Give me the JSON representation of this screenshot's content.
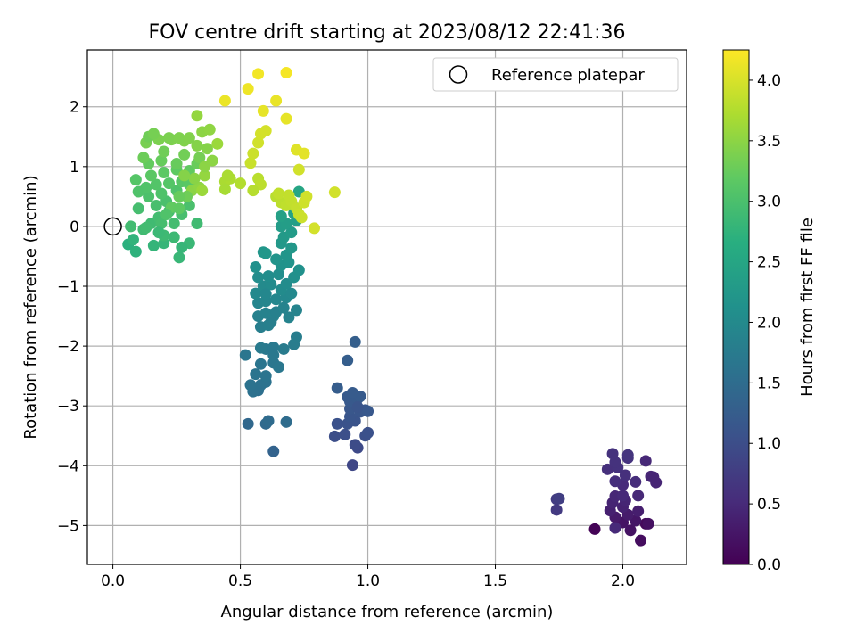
{
  "chart_data": {
    "type": "scatter",
    "title": "FOV centre drift starting at 2023/08/12 22:41:36",
    "xlabel": "Angular distance from reference (arcmin)",
    "ylabel": "Rotation from reference (arcmin)",
    "xlim": [
      -0.1,
      2.25
    ],
    "ylim": [
      -5.65,
      2.95
    ],
    "xticks": [
      0.0,
      0.5,
      1.0,
      1.5,
      2.0
    ],
    "xtick_labels": [
      "0.0",
      "0.5",
      "1.0",
      "1.5",
      "2.0"
    ],
    "yticks": [
      -5,
      -4,
      -3,
      -2,
      -1,
      0,
      1,
      2
    ],
    "ytick_labels": [
      "−5",
      "−4",
      "−3",
      "−2",
      "−1",
      "0",
      "1",
      "2"
    ],
    "grid": true,
    "legend": {
      "position": "top-right",
      "entries": [
        "Reference platepar"
      ]
    },
    "reference_point": {
      "x": 0.0,
      "y": 0.0
    },
    "colorbar": {
      "label": "Hours from first FF file",
      "colormap": "viridis",
      "range": [
        0.0,
        4.25
      ],
      "ticks": [
        0.0,
        0.5,
        1.0,
        1.5,
        2.0,
        2.5,
        3.0,
        3.5,
        4.0
      ],
      "tick_labels": [
        "0.0",
        "0.5",
        "1.0",
        "1.5",
        "2.0",
        "2.5",
        "3.0",
        "3.5",
        "4.0"
      ]
    },
    "points": [
      {
        "x": 1.89,
        "y": -5.06,
        "c": 0.03
      },
      {
        "x": 2.09,
        "y": -4.97,
        "c": 0.1
      },
      {
        "x": 2.07,
        "y": -5.25,
        "c": 0.15
      },
      {
        "x": 2.03,
        "y": -5.08,
        "c": 0.2
      },
      {
        "x": 2.0,
        "y": -4.95,
        "c": 0.22
      },
      {
        "x": 2.1,
        "y": -4.97,
        "c": 0.18
      },
      {
        "x": 2.05,
        "y": -4.92,
        "c": 0.25
      },
      {
        "x": 1.97,
        "y": -4.86,
        "c": 0.3
      },
      {
        "x": 2.02,
        "y": -4.82,
        "c": 0.32
      },
      {
        "x": 2.06,
        "y": -4.76,
        "c": 0.35
      },
      {
        "x": 1.95,
        "y": -4.75,
        "c": 0.38
      },
      {
        "x": 2.0,
        "y": -4.69,
        "c": 0.4
      },
      {
        "x": 1.96,
        "y": -4.62,
        "c": 0.42
      },
      {
        "x": 2.01,
        "y": -4.58,
        "c": 0.44
      },
      {
        "x": 1.97,
        "y": -4.51,
        "c": 0.46
      },
      {
        "x": 2.06,
        "y": -4.5,
        "c": 0.48
      },
      {
        "x": 2.0,
        "y": -4.5,
        "c": 0.5
      },
      {
        "x": 2.0,
        "y": -4.32,
        "c": 0.52
      },
      {
        "x": 2.05,
        "y": -4.27,
        "c": 0.54
      },
      {
        "x": 1.97,
        "y": -4.26,
        "c": 0.56
      },
      {
        "x": 2.01,
        "y": -4.16,
        "c": 0.57
      },
      {
        "x": 1.94,
        "y": -4.06,
        "c": 0.58
      },
      {
        "x": 1.98,
        "y": -4.03,
        "c": 0.6
      },
      {
        "x": 1.97,
        "y": -3.94,
        "c": 0.61
      },
      {
        "x": 2.02,
        "y": -3.87,
        "c": 0.62
      },
      {
        "x": 2.09,
        "y": -3.92,
        "c": 0.48
      },
      {
        "x": 2.11,
        "y": -4.18,
        "c": 0.46
      },
      {
        "x": 2.13,
        "y": -4.28,
        "c": 0.44
      },
      {
        "x": 1.96,
        "y": -3.8,
        "c": 0.6
      },
      {
        "x": 2.02,
        "y": -3.82,
        "c": 0.64
      },
      {
        "x": 1.97,
        "y": -5.04,
        "c": 0.5
      },
      {
        "x": 2.12,
        "y": -4.19,
        "c": 0.43
      },
      {
        "x": 1.74,
        "y": -4.56,
        "c": 0.75
      },
      {
        "x": 1.75,
        "y": -4.55,
        "c": 0.78
      },
      {
        "x": 1.74,
        "y": -4.74,
        "c": 0.72
      },
      {
        "x": 0.94,
        "y": -3.99,
        "c": 0.9
      },
      {
        "x": 0.96,
        "y": -3.7,
        "c": 0.95
      },
      {
        "x": 0.95,
        "y": -3.65,
        "c": 0.97
      },
      {
        "x": 0.87,
        "y": -3.51,
        "c": 1.0
      },
      {
        "x": 0.91,
        "y": -3.48,
        "c": 1.02
      },
      {
        "x": 0.99,
        "y": -3.5,
        "c": 1.04
      },
      {
        "x": 1.0,
        "y": -3.45,
        "c": 1.05
      },
      {
        "x": 0.88,
        "y": -3.3,
        "c": 1.06
      },
      {
        "x": 0.92,
        "y": -3.3,
        "c": 1.08
      },
      {
        "x": 0.95,
        "y": -3.25,
        "c": 1.1
      },
      {
        "x": 0.93,
        "y": -3.18,
        "c": 1.12
      },
      {
        "x": 0.97,
        "y": -3.1,
        "c": 1.13
      },
      {
        "x": 0.93,
        "y": -3.05,
        "c": 1.14
      },
      {
        "x": 0.99,
        "y": -3.07,
        "c": 1.15
      },
      {
        "x": 1.0,
        "y": -3.09,
        "c": 1.16
      },
      {
        "x": 0.93,
        "y": -2.93,
        "c": 1.18
      },
      {
        "x": 0.96,
        "y": -2.88,
        "c": 1.19
      },
      {
        "x": 0.92,
        "y": -2.85,
        "c": 1.2
      },
      {
        "x": 0.97,
        "y": -2.84,
        "c": 1.21
      },
      {
        "x": 0.94,
        "y": -2.78,
        "c": 1.22
      },
      {
        "x": 0.88,
        "y": -2.7,
        "c": 1.24
      },
      {
        "x": 0.92,
        "y": -2.24,
        "c": 1.26
      },
      {
        "x": 0.95,
        "y": -1.93,
        "c": 1.28
      },
      {
        "x": 0.96,
        "y": -3.02,
        "c": 1.11
      },
      {
        "x": 0.63,
        "y": -3.76,
        "c": 1.35
      },
      {
        "x": 0.53,
        "y": -3.3,
        "c": 1.42
      },
      {
        "x": 0.6,
        "y": -3.3,
        "c": 1.45
      },
      {
        "x": 0.61,
        "y": -3.25,
        "c": 1.48
      },
      {
        "x": 0.68,
        "y": -3.27,
        "c": 1.5
      },
      {
        "x": 0.57,
        "y": -2.74,
        "c": 1.55
      },
      {
        "x": 0.55,
        "y": -2.76,
        "c": 1.57
      },
      {
        "x": 0.58,
        "y": -2.65,
        "c": 1.58
      },
      {
        "x": 0.6,
        "y": -2.6,
        "c": 1.6
      },
      {
        "x": 0.54,
        "y": -2.65,
        "c": 1.6
      },
      {
        "x": 0.56,
        "y": -2.47,
        "c": 1.62
      },
      {
        "x": 0.6,
        "y": -2.5,
        "c": 1.63
      },
      {
        "x": 0.58,
        "y": -2.3,
        "c": 1.65
      },
      {
        "x": 0.52,
        "y": -2.15,
        "c": 1.66
      },
      {
        "x": 0.63,
        "y": -2.28,
        "c": 1.67
      },
      {
        "x": 0.65,
        "y": -2.35,
        "c": 1.68
      },
      {
        "x": 0.6,
        "y": -2.05,
        "c": 1.7
      },
      {
        "x": 0.63,
        "y": -2.02,
        "c": 1.72
      },
      {
        "x": 0.67,
        "y": -2.05,
        "c": 1.74
      },
      {
        "x": 0.58,
        "y": -2.03,
        "c": 1.73
      },
      {
        "x": 0.71,
        "y": -1.97,
        "c": 1.76
      },
      {
        "x": 0.72,
        "y": -1.85,
        "c": 1.78
      },
      {
        "x": 0.58,
        "y": -1.68,
        "c": 1.8
      },
      {
        "x": 0.61,
        "y": -1.65,
        "c": 1.82
      },
      {
        "x": 0.57,
        "y": -1.5,
        "c": 1.85
      },
      {
        "x": 0.6,
        "y": -1.45,
        "c": 1.86
      },
      {
        "x": 0.63,
        "y": -1.5,
        "c": 1.87
      },
      {
        "x": 0.69,
        "y": -1.52,
        "c": 1.88
      },
      {
        "x": 0.72,
        "y": -1.4,
        "c": 1.9
      },
      {
        "x": 0.57,
        "y": -1.28,
        "c": 1.92
      },
      {
        "x": 0.6,
        "y": -1.25,
        "c": 1.93
      },
      {
        "x": 0.64,
        "y": -1.22,
        "c": 1.95
      },
      {
        "x": 0.68,
        "y": -1.19,
        "c": 1.97
      },
      {
        "x": 0.7,
        "y": -1.12,
        "c": 1.98
      },
      {
        "x": 0.56,
        "y": -1.12,
        "c": 1.99
      },
      {
        "x": 0.59,
        "y": -1.0,
        "c": 2.0
      },
      {
        "x": 0.62,
        "y": -0.97,
        "c": 2.02
      },
      {
        "x": 0.66,
        "y": -1.06,
        "c": 2.03
      },
      {
        "x": 0.68,
        "y": -0.96,
        "c": 2.04
      },
      {
        "x": 0.57,
        "y": -0.85,
        "c": 2.05
      },
      {
        "x": 0.61,
        "y": -0.83,
        "c": 2.06
      },
      {
        "x": 0.65,
        "y": -0.8,
        "c": 2.08
      },
      {
        "x": 0.71,
        "y": -0.85,
        "c": 2.1
      },
      {
        "x": 0.73,
        "y": -0.73,
        "c": 2.12
      },
      {
        "x": 0.56,
        "y": -0.68,
        "c": 2.13
      },
      {
        "x": 0.66,
        "y": -0.65,
        "c": 2.15
      },
      {
        "x": 0.69,
        "y": -0.6,
        "c": 2.16
      },
      {
        "x": 0.64,
        "y": -0.55,
        "c": 2.18
      },
      {
        "x": 0.68,
        "y": -0.48,
        "c": 2.2
      },
      {
        "x": 0.59,
        "y": -0.43,
        "c": 2.22
      },
      {
        "x": 0.6,
        "y": -0.45,
        "c": 2.23
      },
      {
        "x": 0.7,
        "y": -0.36,
        "c": 2.24
      },
      {
        "x": 0.66,
        "y": -0.28,
        "c": 2.26
      },
      {
        "x": 0.67,
        "y": -0.18,
        "c": 2.28
      },
      {
        "x": 0.7,
        "y": -0.1,
        "c": 2.3
      },
      {
        "x": 0.66,
        "y": 0.0,
        "c": 2.32
      },
      {
        "x": 0.68,
        "y": 0.05,
        "c": 2.34
      },
      {
        "x": 0.72,
        "y": 0.1,
        "c": 2.36
      },
      {
        "x": 0.66,
        "y": 0.17,
        "c": 2.4
      },
      {
        "x": 0.71,
        "y": 0.22,
        "c": 2.42
      },
      {
        "x": 0.72,
        "y": 0.3,
        "c": 2.45
      },
      {
        "x": 0.7,
        "y": 0.4,
        "c": 2.48
      },
      {
        "x": 0.73,
        "y": 0.58,
        "c": 2.5
      },
      {
        "x": 0.64,
        "y": -1.43,
        "c": 1.84
      },
      {
        "x": 0.62,
        "y": -1.6,
        "c": 1.81
      },
      {
        "x": 0.67,
        "y": -1.36,
        "c": 1.89
      },
      {
        "x": 0.6,
        "y": -1.13,
        "c": 1.96
      },
      {
        "x": 0.63,
        "y": -2.15,
        "c": 1.69
      },
      {
        "x": 0.06,
        "y": -0.3,
        "c": 2.7
      },
      {
        "x": 0.09,
        "y": -0.42,
        "c": 2.72
      },
      {
        "x": 0.08,
        "y": -0.22,
        "c": 2.75
      },
      {
        "x": 0.16,
        "y": -0.32,
        "c": 2.78
      },
      {
        "x": 0.2,
        "y": -0.28,
        "c": 2.8
      },
      {
        "x": 0.26,
        "y": -0.52,
        "c": 2.82
      },
      {
        "x": 0.3,
        "y": -0.28,
        "c": 2.84
      },
      {
        "x": 0.24,
        "y": -0.18,
        "c": 2.86
      },
      {
        "x": 0.2,
        "y": -0.15,
        "c": 2.88
      },
      {
        "x": 0.12,
        "y": -0.05,
        "c": 2.9
      },
      {
        "x": 0.15,
        "y": 0.05,
        "c": 2.9
      },
      {
        "x": 0.07,
        "y": 0.0,
        "c": 2.92
      },
      {
        "x": 0.18,
        "y": 0.15,
        "c": 2.93
      },
      {
        "x": 0.24,
        "y": 0.05,
        "c": 2.94
      },
      {
        "x": 0.22,
        "y": 0.25,
        "c": 2.95
      },
      {
        "x": 0.1,
        "y": 0.3,
        "c": 2.96
      },
      {
        "x": 0.17,
        "y": 0.35,
        "c": 2.97
      },
      {
        "x": 0.27,
        "y": 0.2,
        "c": 2.98
      },
      {
        "x": 0.3,
        "y": 0.35,
        "c": 3.0
      },
      {
        "x": 0.21,
        "y": 0.42,
        "c": 3.0
      },
      {
        "x": 0.14,
        "y": 0.5,
        "c": 3.02
      },
      {
        "x": 0.19,
        "y": 0.55,
        "c": 3.04
      },
      {
        "x": 0.25,
        "y": 0.6,
        "c": 3.05
      },
      {
        "x": 0.13,
        "y": 0.65,
        "c": 3.06
      },
      {
        "x": 0.17,
        "y": 0.7,
        "c": 3.08
      },
      {
        "x": 0.22,
        "y": 0.72,
        "c": 3.1
      },
      {
        "x": 0.09,
        "y": 0.78,
        "c": 3.1
      },
      {
        "x": 0.27,
        "y": 0.75,
        "c": 3.12
      },
      {
        "x": 0.3,
        "y": 0.7,
        "c": 3.14
      },
      {
        "x": 0.15,
        "y": 0.85,
        "c": 3.15
      },
      {
        "x": 0.2,
        "y": 0.9,
        "c": 3.16
      },
      {
        "x": 0.25,
        "y": 0.95,
        "c": 3.18
      },
      {
        "x": 0.3,
        "y": 0.93,
        "c": 3.2
      },
      {
        "x": 0.14,
        "y": 1.05,
        "c": 3.22
      },
      {
        "x": 0.19,
        "y": 1.1,
        "c": 3.24
      },
      {
        "x": 0.25,
        "y": 1.05,
        "c": 3.25
      },
      {
        "x": 0.33,
        "y": 1.05,
        "c": 3.26
      },
      {
        "x": 0.12,
        "y": 1.15,
        "c": 3.28
      },
      {
        "x": 0.2,
        "y": 1.25,
        "c": 3.3
      },
      {
        "x": 0.28,
        "y": 1.2,
        "c": 3.32
      },
      {
        "x": 0.34,
        "y": 1.15,
        "c": 3.34
      },
      {
        "x": 0.13,
        "y": 1.4,
        "c": 3.36
      },
      {
        "x": 0.18,
        "y": 1.45,
        "c": 3.38
      },
      {
        "x": 0.23,
        "y": 1.45,
        "c": 3.4
      },
      {
        "x": 0.28,
        "y": 1.43,
        "c": 3.42
      },
      {
        "x": 0.33,
        "y": 1.35,
        "c": 3.44
      },
      {
        "x": 0.37,
        "y": 1.3,
        "c": 3.45
      },
      {
        "x": 0.14,
        "y": 1.5,
        "c": 3.3
      },
      {
        "x": 0.16,
        "y": 1.55,
        "c": 3.35
      },
      {
        "x": 0.22,
        "y": 1.48,
        "c": 3.38
      },
      {
        "x": 0.26,
        "y": 1.48,
        "c": 3.4
      },
      {
        "x": 0.3,
        "y": 1.48,
        "c": 3.42
      },
      {
        "x": 0.35,
        "y": 1.58,
        "c": 3.5
      },
      {
        "x": 0.38,
        "y": 1.62,
        "c": 3.52
      },
      {
        "x": 0.33,
        "y": 1.85,
        "c": 3.55
      },
      {
        "x": 0.41,
        "y": 1.38,
        "c": 3.6
      },
      {
        "x": 0.39,
        "y": 1.1,
        "c": 3.5
      },
      {
        "x": 0.36,
        "y": 0.85,
        "c": 3.55
      },
      {
        "x": 0.31,
        "y": 0.6,
        "c": 3.5
      },
      {
        "x": 0.34,
        "y": 0.65,
        "c": 3.52
      },
      {
        "x": 0.29,
        "y": 0.5,
        "c": 3.3
      },
      {
        "x": 0.23,
        "y": 0.32,
        "c": 3.2
      },
      {
        "x": 0.26,
        "y": 0.3,
        "c": 3.18
      },
      {
        "x": 0.33,
        "y": 0.05,
        "c": 2.9
      },
      {
        "x": 0.19,
        "y": 0.05,
        "c": 2.96
      },
      {
        "x": 0.18,
        "y": -0.1,
        "c": 2.85
      },
      {
        "x": 0.27,
        "y": -0.35,
        "c": 2.8
      },
      {
        "x": 0.13,
        "y": -0.02,
        "c": 2.92
      },
      {
        "x": 0.1,
        "y": 0.58,
        "c": 3.05
      },
      {
        "x": 0.36,
        "y": 1.0,
        "c": 3.5
      },
      {
        "x": 0.32,
        "y": 0.8,
        "c": 3.48
      },
      {
        "x": 0.28,
        "y": 0.85,
        "c": 3.45
      },
      {
        "x": 0.26,
        "y": 0.5,
        "c": 3.25
      },
      {
        "x": 0.21,
        "y": 0.2,
        "c": 3.05
      },
      {
        "x": 0.35,
        "y": 0.6,
        "c": 3.6
      },
      {
        "x": 0.44,
        "y": 0.75,
        "c": 3.7
      },
      {
        "x": 0.46,
        "y": 0.8,
        "c": 3.72
      },
      {
        "x": 0.5,
        "y": 0.72,
        "c": 3.75
      },
      {
        "x": 0.44,
        "y": 0.62,
        "c": 3.68
      },
      {
        "x": 0.45,
        "y": 0.85,
        "c": 3.7
      },
      {
        "x": 0.57,
        "y": 0.8,
        "c": 3.8
      },
      {
        "x": 0.58,
        "y": 0.7,
        "c": 3.82
      },
      {
        "x": 0.55,
        "y": 0.6,
        "c": 3.78
      },
      {
        "x": 0.54,
        "y": 1.06,
        "c": 3.9
      },
      {
        "x": 0.55,
        "y": 1.22,
        "c": 3.92
      },
      {
        "x": 0.57,
        "y": 1.4,
        "c": 3.95
      },
      {
        "x": 0.58,
        "y": 1.55,
        "c": 3.97
      },
      {
        "x": 0.6,
        "y": 1.6,
        "c": 3.98
      },
      {
        "x": 0.64,
        "y": 0.5,
        "c": 3.8
      },
      {
        "x": 0.66,
        "y": 0.4,
        "c": 3.82
      },
      {
        "x": 0.68,
        "y": 0.35,
        "c": 3.84
      },
      {
        "x": 0.7,
        "y": 0.42,
        "c": 3.86
      },
      {
        "x": 0.72,
        "y": 0.3,
        "c": 3.88
      },
      {
        "x": 0.73,
        "y": 0.2,
        "c": 3.9
      },
      {
        "x": 0.74,
        "y": 0.15,
        "c": 3.92
      },
      {
        "x": 0.75,
        "y": 0.4,
        "c": 3.94
      },
      {
        "x": 0.76,
        "y": 0.5,
        "c": 3.95
      },
      {
        "x": 0.79,
        "y": -0.03,
        "c": 3.97
      },
      {
        "x": 0.87,
        "y": 0.57,
        "c": 3.96
      },
      {
        "x": 0.73,
        "y": 0.95,
        "c": 3.96
      },
      {
        "x": 0.72,
        "y": 1.28,
        "c": 4.05
      },
      {
        "x": 0.75,
        "y": 1.22,
        "c": 4.08
      },
      {
        "x": 0.59,
        "y": 1.93,
        "c": 4.1
      },
      {
        "x": 0.68,
        "y": 1.8,
        "c": 4.1
      },
      {
        "x": 0.64,
        "y": 2.1,
        "c": 4.12
      },
      {
        "x": 0.44,
        "y": 2.1,
        "c": 4.13
      },
      {
        "x": 0.53,
        "y": 2.3,
        "c": 4.15
      },
      {
        "x": 0.57,
        "y": 2.55,
        "c": 4.18
      },
      {
        "x": 0.68,
        "y": 2.57,
        "c": 4.2
      },
      {
        "x": 0.65,
        "y": 0.55,
        "c": 3.85
      },
      {
        "x": 0.69,
        "y": 0.52,
        "c": 3.86
      }
    ]
  }
}
